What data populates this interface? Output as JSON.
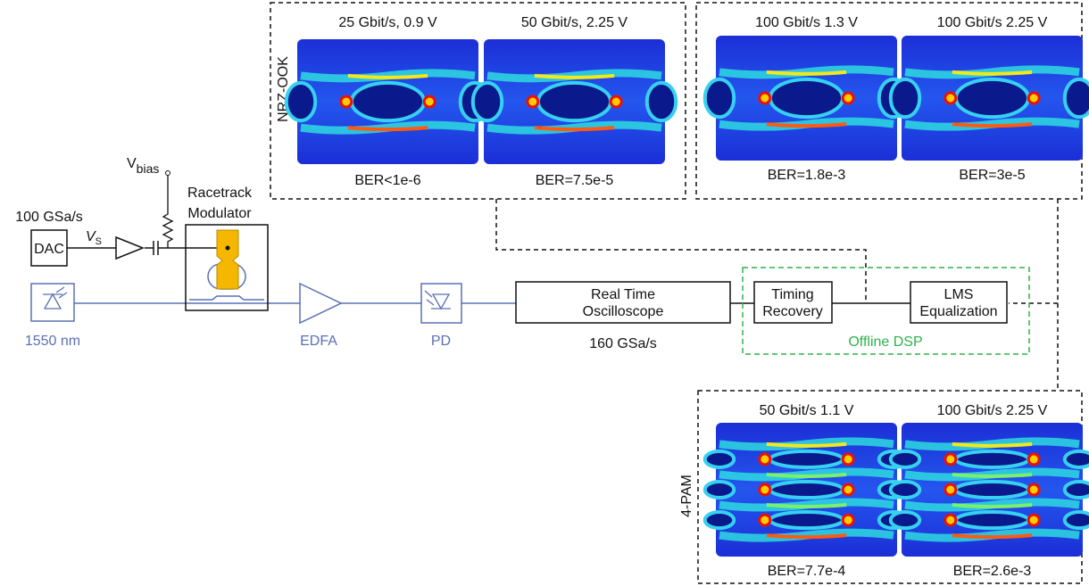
{
  "source": {
    "label": "1550 nm"
  },
  "dac": {
    "rate": "100 GSa/s",
    "label": "DAC",
    "signal": "V",
    "signal_sub": "S"
  },
  "bias": {
    "label": "V",
    "sub": "bias"
  },
  "modulator": {
    "label": [
      "Racetrack",
      "Modulator"
    ]
  },
  "edfa": "EDFA",
  "pd": "PD",
  "oscilloscope": {
    "label": [
      "Real Time",
      "Oscilloscope"
    ],
    "rate": "160 GSa/s"
  },
  "dsp": {
    "label": "Offline DSP",
    "blocks": [
      [
        "Timing",
        "Recovery"
      ],
      [
        "LMS",
        "Equalization"
      ]
    ]
  },
  "panels": [
    {
      "format": "NRZ-OOK",
      "eyes": [
        {
          "title": "25 Gbit/s, 0.9 V",
          "ber": "BER<1e-6"
        },
        {
          "title": "50 Gbit/s, 2.25 V",
          "ber": "BER=7.5e-5"
        }
      ]
    },
    {
      "eyes": [
        {
          "title": "100 Gbit/s 1.3 V",
          "ber": "BER=1.8e-3"
        },
        {
          "title": "100 Gbit/s 2.25 V",
          "ber": "BER=3e-5"
        }
      ]
    },
    {
      "format": "4-PAM",
      "eyes": [
        {
          "title": "50 Gbit/s 1.1 V",
          "ber": "BER=7.7e-4"
        },
        {
          "title": "100 Gbit/s 2.25 V",
          "ber": "BER=2.6e-3"
        }
      ]
    }
  ]
}
